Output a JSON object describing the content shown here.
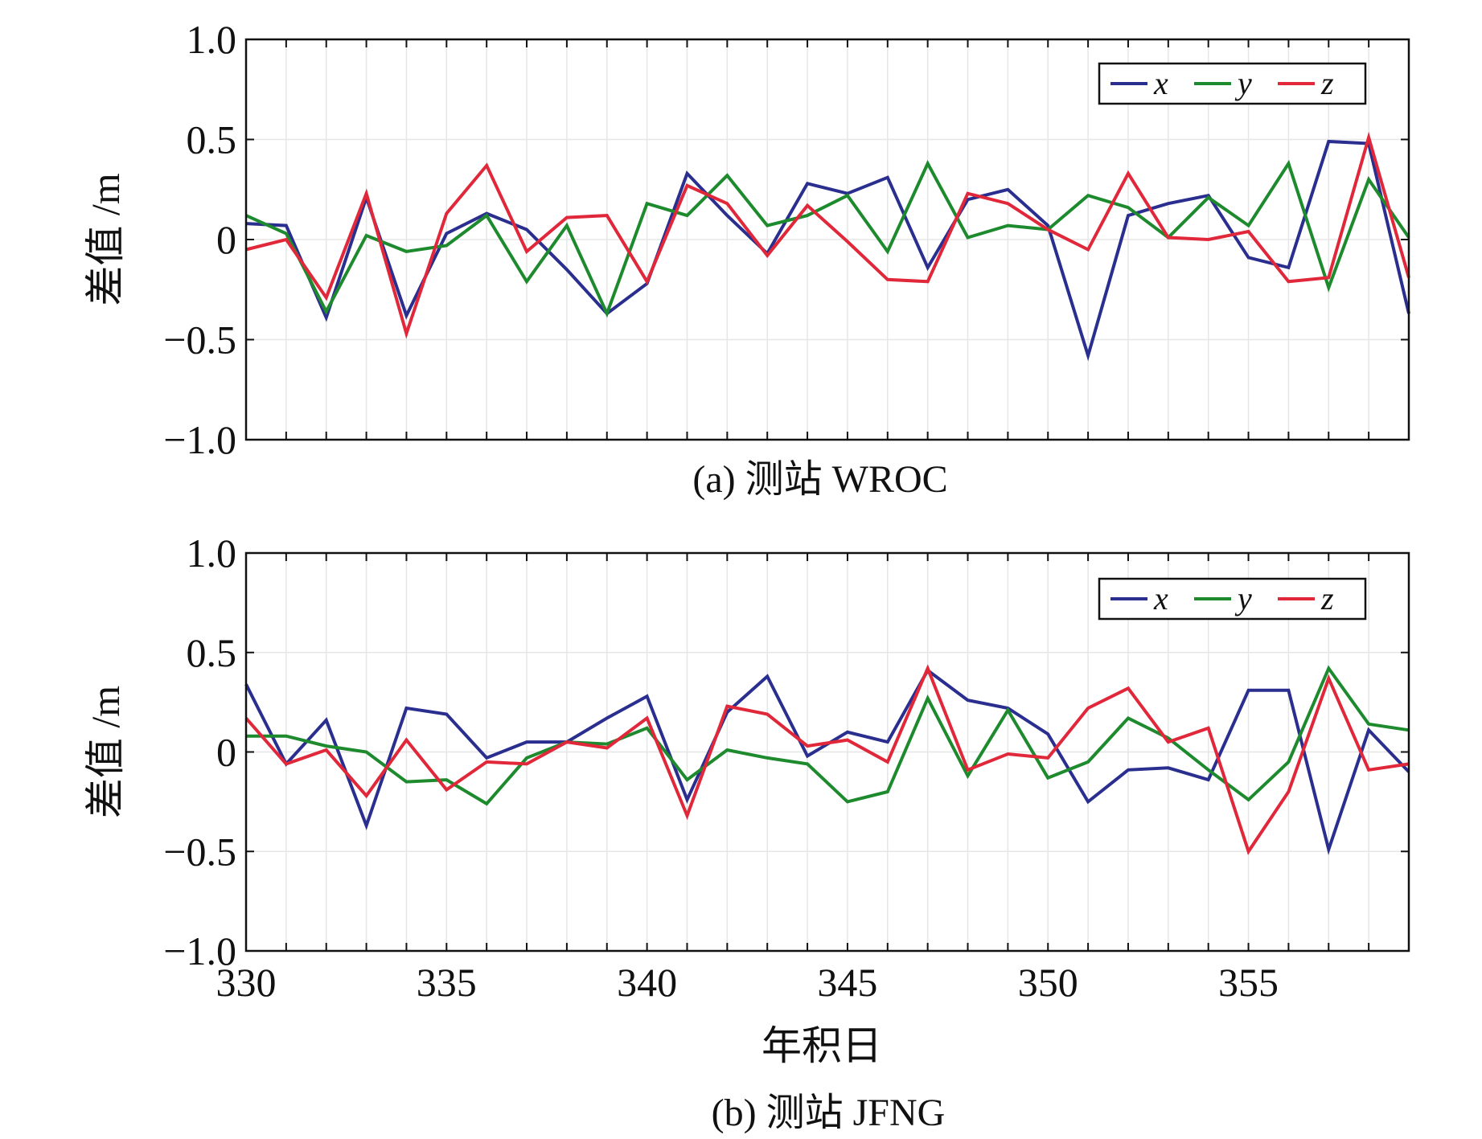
{
  "figure": {
    "xlabel": "年积日",
    "colors": {
      "x": "#2a2f8f",
      "y": "#1e8a2e",
      "z": "#e0283a",
      "grid": "#e6e6e6",
      "axis": "#111111"
    }
  },
  "chart_data": [
    {
      "type": "line",
      "caption": "(a) 测站 WROC",
      "ylabel": "差值 /m",
      "xlabel": "",
      "xlim": [
        330,
        359
      ],
      "ylim": [
        -1.0,
        1.0
      ],
      "yticks": [
        "1.0",
        "0.5",
        "0",
        "−0.5",
        "−1.0"
      ],
      "yticks_values": [
        1.0,
        0.5,
        0,
        -0.5,
        -1.0
      ],
      "xticks": [],
      "grid": true,
      "legend": {
        "placement": "top-right",
        "entries": [
          "x",
          "y",
          "z"
        ]
      },
      "x": [
        330,
        331,
        332,
        333,
        334,
        335,
        336,
        337,
        338,
        339,
        340,
        341,
        342,
        343,
        344,
        345,
        346,
        347,
        348,
        349,
        350,
        351,
        352,
        353,
        354,
        355,
        356,
        357,
        358,
        359
      ],
      "series": [
        {
          "name": "x",
          "color": "#2a2f8f",
          "values": [
            0.08,
            0.07,
            -0.39,
            0.21,
            -0.38,
            0.03,
            0.13,
            0.05,
            -0.15,
            -0.37,
            -0.22,
            0.33,
            0.12,
            -0.07,
            0.28,
            0.23,
            0.31,
            -0.14,
            0.2,
            0.25,
            0.07,
            -0.58,
            0.12,
            0.18,
            0.22,
            -0.09,
            -0.14,
            0.49,
            0.48,
            -0.37
          ]
        },
        {
          "name": "y",
          "color": "#1e8a2e",
          "values": [
            0.12,
            0.03,
            -0.36,
            0.02,
            -0.06,
            -0.03,
            0.12,
            -0.21,
            0.07,
            -0.37,
            0.18,
            0.12,
            0.32,
            0.07,
            0.12,
            0.22,
            -0.06,
            0.38,
            0.01,
            0.07,
            0.05,
            0.22,
            0.16,
            0.01,
            0.21,
            0.07,
            0.38,
            -0.24,
            0.3,
            0.01
          ]
        },
        {
          "name": "z",
          "color": "#e0283a",
          "values": [
            -0.05,
            0.0,
            -0.29,
            0.23,
            -0.47,
            0.13,
            0.37,
            -0.06,
            0.11,
            0.12,
            -0.21,
            0.27,
            0.18,
            -0.08,
            0.17,
            -0.01,
            -0.2,
            -0.21,
            0.23,
            0.18,
            0.05,
            -0.05,
            0.33,
            0.01,
            0.0,
            0.04,
            -0.21,
            -0.19,
            0.51,
            -0.19
          ]
        }
      ]
    },
    {
      "type": "line",
      "caption": "(b) 测站 JFNG",
      "ylabel": "差值 /m",
      "xlabel": "年积日",
      "xlim": [
        330,
        359
      ],
      "ylim": [
        -1.0,
        1.0
      ],
      "yticks": [
        "1.0",
        "0.5",
        "0",
        "−0.5",
        "−1.0"
      ],
      "yticks_values": [
        1.0,
        0.5,
        0,
        -0.5,
        -1.0
      ],
      "xticks": [
        "330",
        "335",
        "340",
        "345",
        "350",
        "355"
      ],
      "xticks_values": [
        330,
        335,
        340,
        345,
        350,
        355
      ],
      "grid": true,
      "legend": {
        "placement": "top-right",
        "entries": [
          "x",
          "y",
          "z"
        ]
      },
      "x": [
        330,
        331,
        332,
        333,
        334,
        335,
        336,
        337,
        338,
        339,
        340,
        341,
        342,
        343,
        344,
        345,
        346,
        347,
        348,
        349,
        350,
        351,
        352,
        353,
        354,
        355,
        356,
        357,
        358,
        359
      ],
      "series": [
        {
          "name": "x",
          "color": "#2a2f8f",
          "values": [
            0.34,
            -0.06,
            0.16,
            -0.37,
            0.22,
            0.19,
            -0.03,
            0.05,
            0.05,
            0.17,
            0.28,
            -0.24,
            0.2,
            0.38,
            -0.02,
            0.1,
            0.05,
            0.41,
            0.26,
            0.22,
            0.09,
            -0.25,
            -0.09,
            -0.08,
            -0.14,
            0.31,
            0.31,
            -0.49,
            0.11,
            -0.1
          ]
        },
        {
          "name": "y",
          "color": "#1e8a2e",
          "values": [
            0.08,
            0.08,
            0.03,
            0.0,
            -0.15,
            -0.14,
            -0.26,
            -0.03,
            0.05,
            0.04,
            0.12,
            -0.14,
            0.01,
            -0.03,
            -0.06,
            -0.25,
            -0.2,
            0.27,
            -0.12,
            0.21,
            -0.13,
            -0.05,
            0.17,
            0.07,
            -0.09,
            -0.24,
            -0.05,
            0.42,
            0.14,
            0.11
          ]
        },
        {
          "name": "z",
          "color": "#e0283a",
          "values": [
            0.17,
            -0.06,
            0.01,
            -0.22,
            0.06,
            -0.19,
            -0.05,
            -0.06,
            0.05,
            0.02,
            0.17,
            -0.32,
            0.23,
            0.19,
            0.03,
            0.06,
            -0.05,
            0.42,
            -0.09,
            -0.01,
            -0.03,
            0.22,
            0.32,
            0.05,
            0.12,
            -0.5,
            -0.2,
            0.37,
            -0.09,
            -0.06
          ]
        }
      ]
    }
  ]
}
